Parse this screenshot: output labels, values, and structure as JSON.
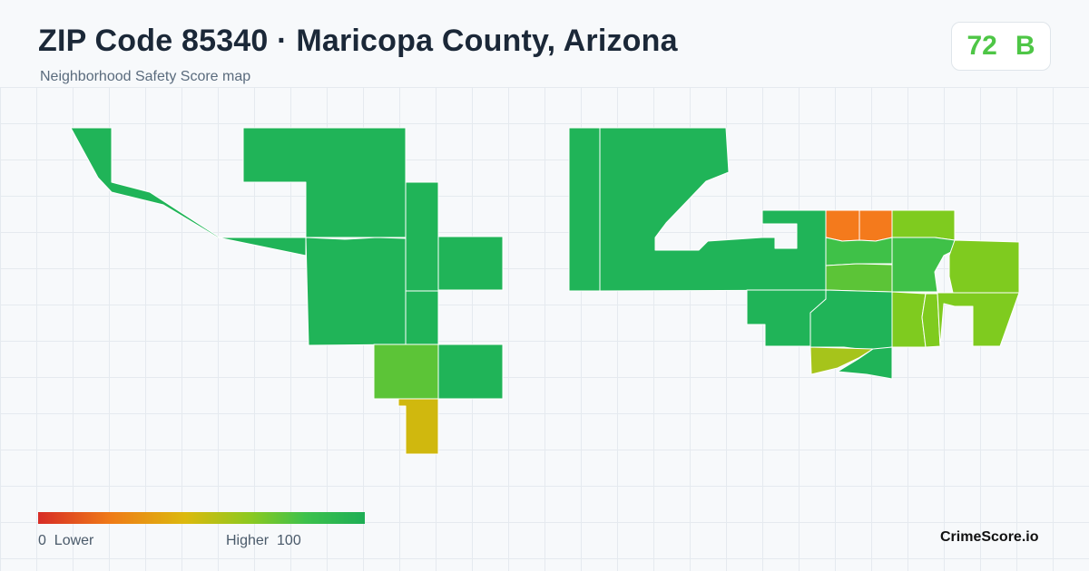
{
  "header": {
    "title": "ZIP Code 85340 · Maricopa County, Arizona",
    "subtitle": "Neighborhood Safety Score map"
  },
  "score": {
    "value": "72",
    "grade": "B",
    "color": "#4ec646"
  },
  "legend": {
    "low_value": "0",
    "low_label": "Lower",
    "high_label": "Higher",
    "high_value": "100",
    "colors": [
      "#d72c26",
      "#ef7a17",
      "#dcb90d",
      "#8cc920",
      "#3cc14c",
      "#1eae55"
    ]
  },
  "brand": "CrimeScore.io",
  "map": {
    "palette": {
      "dark_green": "#20b458",
      "green": "#3fc148",
      "light_green": "#5cc437",
      "yellow_green": "#7fcb1f",
      "olive": "#a6c41b",
      "mustard": "#d0b80e",
      "orange": "#f47a1c",
      "grid": "#e5eaef",
      "border": "#ffffff"
    }
  }
}
